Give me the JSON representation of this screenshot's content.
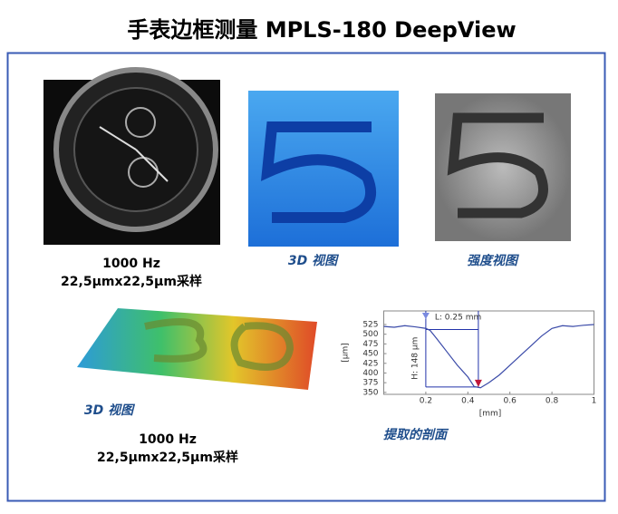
{
  "header": {
    "title": "手表边框测量 MPLS-180 DeepView"
  },
  "panels": {
    "watch_caption": [
      "1000 Hz",
      "22,5µmx22,5µm采样"
    ],
    "view3d_top_caption": "3D 视图",
    "intensity_caption": "强度视图",
    "view3d_bottom_caption": "3D 视图",
    "bottom_caption": [
      "1000 Hz",
      "22,5µmx22,5µm采样"
    ],
    "profile_caption": "提取的剖面"
  },
  "chart_data": {
    "type": "line",
    "x_label": "[mm]",
    "y_label": "[µm]",
    "x": [
      0,
      0.05,
      0.1,
      0.15,
      0.2,
      0.22,
      0.25,
      0.3,
      0.35,
      0.4,
      0.43,
      0.46,
      0.5,
      0.55,
      0.6,
      0.65,
      0.7,
      0.75,
      0.8,
      0.85,
      0.9,
      0.95,
      1
    ],
    "series": [
      {
        "color": "#3a4aa8",
        "values": [
          520,
          518,
          522,
          519,
          515,
          510,
          490,
          455,
          420,
          390,
          365,
          362,
          375,
          395,
          420,
          445,
          470,
          495,
          515,
          522,
          520,
          523,
          525
        ]
      }
    ],
    "xlim": [
      0,
      1
    ],
    "ylim": [
      345,
      560
    ],
    "xticks": [
      0.2,
      0.4,
      0.6,
      0.8,
      1
    ],
    "yticks": [
      350,
      375,
      400,
      425,
      450,
      475,
      500,
      525
    ],
    "annotations": [
      "L: 0.25 mm",
      "H: 148 µm"
    ],
    "cursor_x": [
      0.2,
      0.45
    ],
    "cursor_y": [
      512,
      364
    ]
  }
}
